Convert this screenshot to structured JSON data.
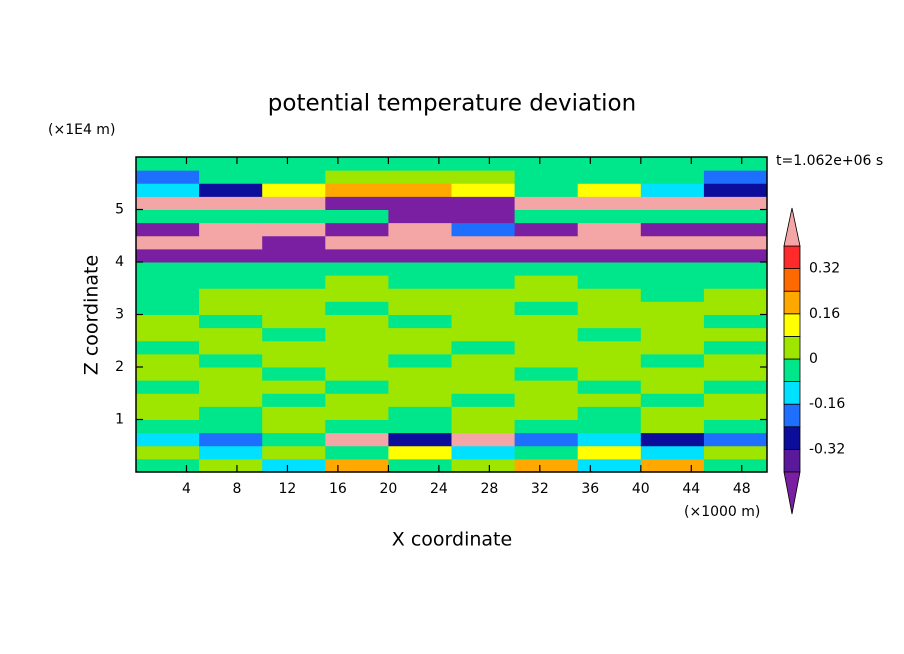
{
  "chart_data": {
    "type": "contour",
    "title": "potential temperature deviation",
    "xlabel": "X coordinate",
    "ylabel": "Z coordinate",
    "x_unit": "(×1000 m)",
    "y_unit": "(×1E4 m)",
    "annotation": "t=1.062e+06 s",
    "xlim": [
      0,
      50
    ],
    "ylim": [
      0,
      6
    ],
    "xticks": [
      4,
      8,
      12,
      16,
      20,
      24,
      28,
      32,
      36,
      40,
      44,
      48
    ],
    "yticks": [
      1,
      2,
      3,
      4,
      5
    ],
    "x": [
      2.5,
      7.5,
      12.5,
      17.5,
      22.5,
      27.5,
      32.5,
      37.5,
      42.5,
      47.5
    ],
    "y": [
      0.125,
      0.375,
      0.625,
      0.875,
      1.125,
      1.375,
      1.625,
      1.875,
      2.125,
      2.375,
      2.625,
      2.875,
      3.125,
      3.375,
      3.625,
      3.875,
      4.125,
      4.375,
      4.625,
      4.875,
      5.125,
      5.375,
      5.625,
      5.875
    ],
    "z": [
      [
        -0.04,
        0.04,
        -0.12,
        0.2,
        -0.04,
        0.04,
        0.2,
        -0.12,
        0.2,
        -0.04
      ],
      [
        0.04,
        -0.12,
        0.04,
        -0.04,
        0.12,
        -0.12,
        -0.04,
        0.12,
        -0.12,
        0.04
      ],
      [
        -0.12,
        -0.2,
        -0.04,
        0.45,
        -0.28,
        0.45,
        -0.2,
        -0.12,
        -0.28,
        -0.2
      ],
      [
        -0.04,
        -0.04,
        0.04,
        -0.04,
        -0.04,
        0.04,
        -0.04,
        -0.04,
        0.04,
        -0.04
      ],
      [
        0.04,
        -0.04,
        0.04,
        0.04,
        -0.04,
        0.04,
        0.04,
        -0.04,
        0.04,
        0.04
      ],
      [
        0.04,
        0.04,
        -0.04,
        0.04,
        0.04,
        -0.04,
        0.04,
        0.04,
        -0.04,
        0.04
      ],
      [
        -0.04,
        0.04,
        0.04,
        -0.04,
        0.04,
        0.04,
        0.04,
        -0.04,
        0.04,
        -0.04
      ],
      [
        0.04,
        0.04,
        -0.04,
        0.04,
        0.04,
        0.04,
        -0.04,
        0.04,
        0.04,
        0.04
      ],
      [
        0.04,
        -0.04,
        0.04,
        0.04,
        -0.04,
        0.04,
        0.04,
        0.04,
        -0.04,
        0.04
      ],
      [
        -0.04,
        0.04,
        0.04,
        0.04,
        0.04,
        -0.04,
        0.04,
        0.04,
        0.04,
        -0.04
      ],
      [
        0.04,
        0.04,
        -0.04,
        0.04,
        0.04,
        0.04,
        0.04,
        -0.04,
        0.04,
        0.04
      ],
      [
        0.04,
        -0.04,
        0.04,
        0.04,
        -0.04,
        0.04,
        0.04,
        0.04,
        0.04,
        -0.04
      ],
      [
        -0.04,
        0.04,
        0.04,
        -0.04,
        0.04,
        0.04,
        -0.04,
        0.04,
        0.04,
        0.04
      ],
      [
        -0.04,
        0.04,
        0.04,
        0.04,
        0.04,
        0.04,
        0.04,
        0.04,
        -0.04,
        0.04
      ],
      [
        -0.04,
        -0.04,
        -0.04,
        0.04,
        -0.04,
        -0.04,
        0.04,
        -0.04,
        -0.04,
        -0.04
      ],
      [
        -0.04,
        -0.04,
        -0.04,
        -0.04,
        -0.04,
        -0.04,
        -0.04,
        -0.04,
        -0.04,
        -0.04
      ],
      [
        -0.45,
        -0.45,
        -0.45,
        -0.45,
        -0.45,
        -0.45,
        -0.45,
        -0.45,
        -0.45,
        -0.45
      ],
      [
        0.45,
        0.45,
        -0.45,
        0.45,
        0.45,
        0.45,
        0.45,
        0.45,
        0.45,
        0.45
      ],
      [
        -0.45,
        0.45,
        0.45,
        -0.45,
        0.45,
        -0.2,
        -0.45,
        0.45,
        -0.45,
        -0.45
      ],
      [
        -0.04,
        -0.04,
        -0.04,
        -0.04,
        -0.45,
        -0.45,
        -0.04,
        -0.04,
        -0.04,
        -0.04
      ],
      [
        0.45,
        0.45,
        0.45,
        -0.45,
        -0.45,
        -0.45,
        0.45,
        0.45,
        0.45,
        0.45
      ],
      [
        -0.12,
        -0.28,
        0.12,
        0.2,
        0.2,
        0.12,
        -0.04,
        0.12,
        -0.12,
        -0.28
      ],
      [
        -0.2,
        -0.04,
        -0.04,
        0.04,
        0.04,
        0.04,
        -0.04,
        -0.04,
        -0.04,
        -0.2
      ],
      [
        -0.04,
        -0.04,
        -0.04,
        -0.04,
        -0.04,
        -0.04,
        -0.04,
        -0.04,
        -0.04,
        -0.04
      ]
    ],
    "levels": [
      -0.4,
      -0.32,
      -0.24,
      -0.16,
      -0.08,
      0,
      0.08,
      0.16,
      0.24,
      0.32,
      0.4
    ],
    "colors": [
      "#7a1fa2",
      "#5a189a",
      "#0d0d9c",
      "#1f6fff",
      "#00e0ff",
      "#00e68a",
      "#9ee600",
      "#ffff00",
      "#ffa800",
      "#ff6a00",
      "#ff2a2a",
      "#f4a5a5"
    ],
    "colorbar_ticks": [
      -0.32,
      -0.16,
      0,
      0.16,
      0.32
    ]
  }
}
